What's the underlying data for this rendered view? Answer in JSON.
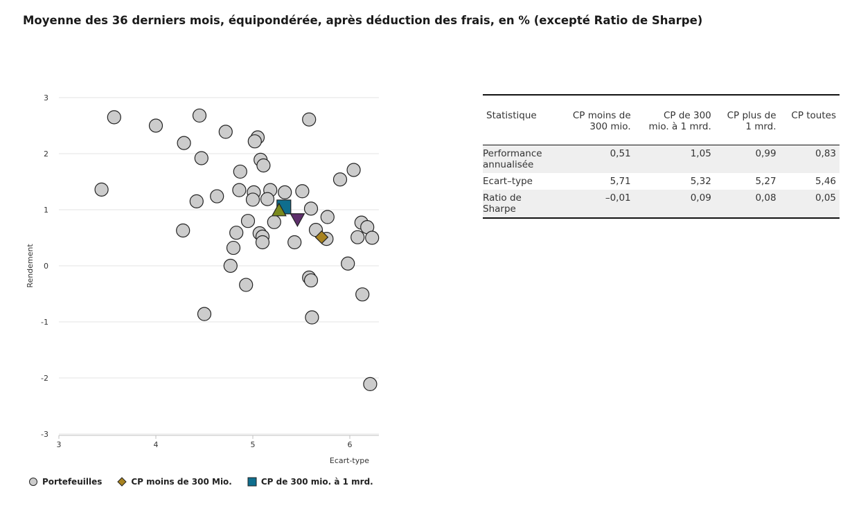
{
  "page": {
    "title": "Moyenne des 36 derniers mois, équipondérée, après déduction des frais, en % (excepté Ratio de Sharpe)"
  },
  "chart_data": {
    "type": "scatter",
    "xlabel": "Ecart-type",
    "ylabel": "Rendement",
    "xlim": [
      3,
      6.3
    ],
    "ylim": [
      -3,
      3
    ],
    "x_ticks": [
      "3",
      "4",
      "5",
      "6"
    ],
    "y_ticks": [
      "3",
      "2",
      "1",
      "0",
      "-1",
      "-2",
      "-3"
    ],
    "grid": "horizontal",
    "legend_position": "bottom",
    "series": [
      {
        "name": "Portefeuilles",
        "marker": "circle",
        "color": "#cccccc",
        "points": [
          [
            3.44,
            1.36
          ],
          [
            3.57,
            2.65
          ],
          [
            4.0,
            2.5
          ],
          [
            4.29,
            2.19
          ],
          [
            4.45,
            2.68
          ],
          [
            4.47,
            1.92
          ],
          [
            4.72,
            2.39
          ],
          [
            5.05,
            2.29
          ],
          [
            5.02,
            2.22
          ],
          [
            5.58,
            2.61
          ],
          [
            5.08,
            1.89
          ],
          [
            5.11,
            1.79
          ],
          [
            4.87,
            1.68
          ],
          [
            5.9,
            1.54
          ],
          [
            6.04,
            1.71
          ],
          [
            4.86,
            1.35
          ],
          [
            5.01,
            1.31
          ],
          [
            5.18,
            1.35
          ],
          [
            5.33,
            1.31
          ],
          [
            5.51,
            1.33
          ],
          [
            4.63,
            1.24
          ],
          [
            5.0,
            1.18
          ],
          [
            5.15,
            1.19
          ],
          [
            4.42,
            1.15
          ],
          [
            5.6,
            1.02
          ],
          [
            5.77,
            0.87
          ],
          [
            4.95,
            0.8
          ],
          [
            5.22,
            0.78
          ],
          [
            6.12,
            0.77
          ],
          [
            6.18,
            0.69
          ],
          [
            4.28,
            0.63
          ],
          [
            4.83,
            0.59
          ],
          [
            5.07,
            0.58
          ],
          [
            5.65,
            0.64
          ],
          [
            5.1,
            0.52
          ],
          [
            5.76,
            0.48
          ],
          [
            6.08,
            0.51
          ],
          [
            6.23,
            0.5
          ],
          [
            5.1,
            0.42
          ],
          [
            5.43,
            0.42
          ],
          [
            4.8,
            0.32
          ],
          [
            4.77,
            0.0
          ],
          [
            5.98,
            0.04
          ],
          [
            5.58,
            -0.21
          ],
          [
            5.6,
            -0.26
          ],
          [
            4.93,
            -0.34
          ],
          [
            6.13,
            -0.51
          ],
          [
            4.5,
            -0.86
          ],
          [
            5.61,
            -0.92
          ],
          [
            6.21,
            -2.11
          ]
        ]
      },
      {
        "name": "CP moins de 300 Mio.",
        "marker": "diamond",
        "color": "#a88320",
        "points": [
          [
            5.71,
            0.51
          ]
        ]
      },
      {
        "name": "CP de 300 mio. à 1 mrd.",
        "marker": "square",
        "color": "#0f6e8e",
        "points": [
          [
            5.32,
            1.05
          ]
        ]
      },
      {
        "name": "CP plus de 1 mrd.",
        "marker": "triangle-up",
        "color": "#7a8a1e",
        "points": [
          [
            5.27,
            0.99
          ]
        ]
      },
      {
        "name": "CP toutes",
        "marker": "triangle-down",
        "color": "#5d2f6b",
        "points": [
          [
            5.46,
            0.83
          ]
        ]
      }
    ]
  },
  "legend": {
    "items": [
      {
        "label": "Portefeuilles",
        "icon": "circle-icon",
        "color": "#cccccc"
      },
      {
        "label": "CP moins de 300 Mio.",
        "icon": "diamond-icon",
        "color": "#a88320"
      },
      {
        "label": "CP de 300 mio. à 1 mrd.",
        "icon": "square-icon",
        "color": "#0f6e8e"
      },
      {
        "label": "CP plus de 1 mrd.",
        "icon": "triangle-up-icon",
        "color": "#7a8a1e"
      }
    ]
  },
  "table": {
    "headers": [
      [
        "Statistique"
      ],
      [
        "CP moins de",
        "300 mio."
      ],
      [
        "CP de 300",
        "mio. à 1 mrd."
      ],
      [
        "CP plus de",
        "1 mrd."
      ],
      [
        "CP toutes"
      ]
    ],
    "rows": [
      {
        "label": [
          "Performance",
          "annualisée"
        ],
        "values": [
          "0,51",
          "1,05",
          "0,99",
          "0,83"
        ]
      },
      {
        "label": [
          "Ecart–type"
        ],
        "values": [
          "5,71",
          "5,32",
          "5,27",
          "5,46"
        ]
      },
      {
        "label": [
          "Ratio de",
          "Sharpe"
        ],
        "values": [
          "–0,01",
          "0,09",
          "0,08",
          "0,05"
        ]
      }
    ]
  }
}
